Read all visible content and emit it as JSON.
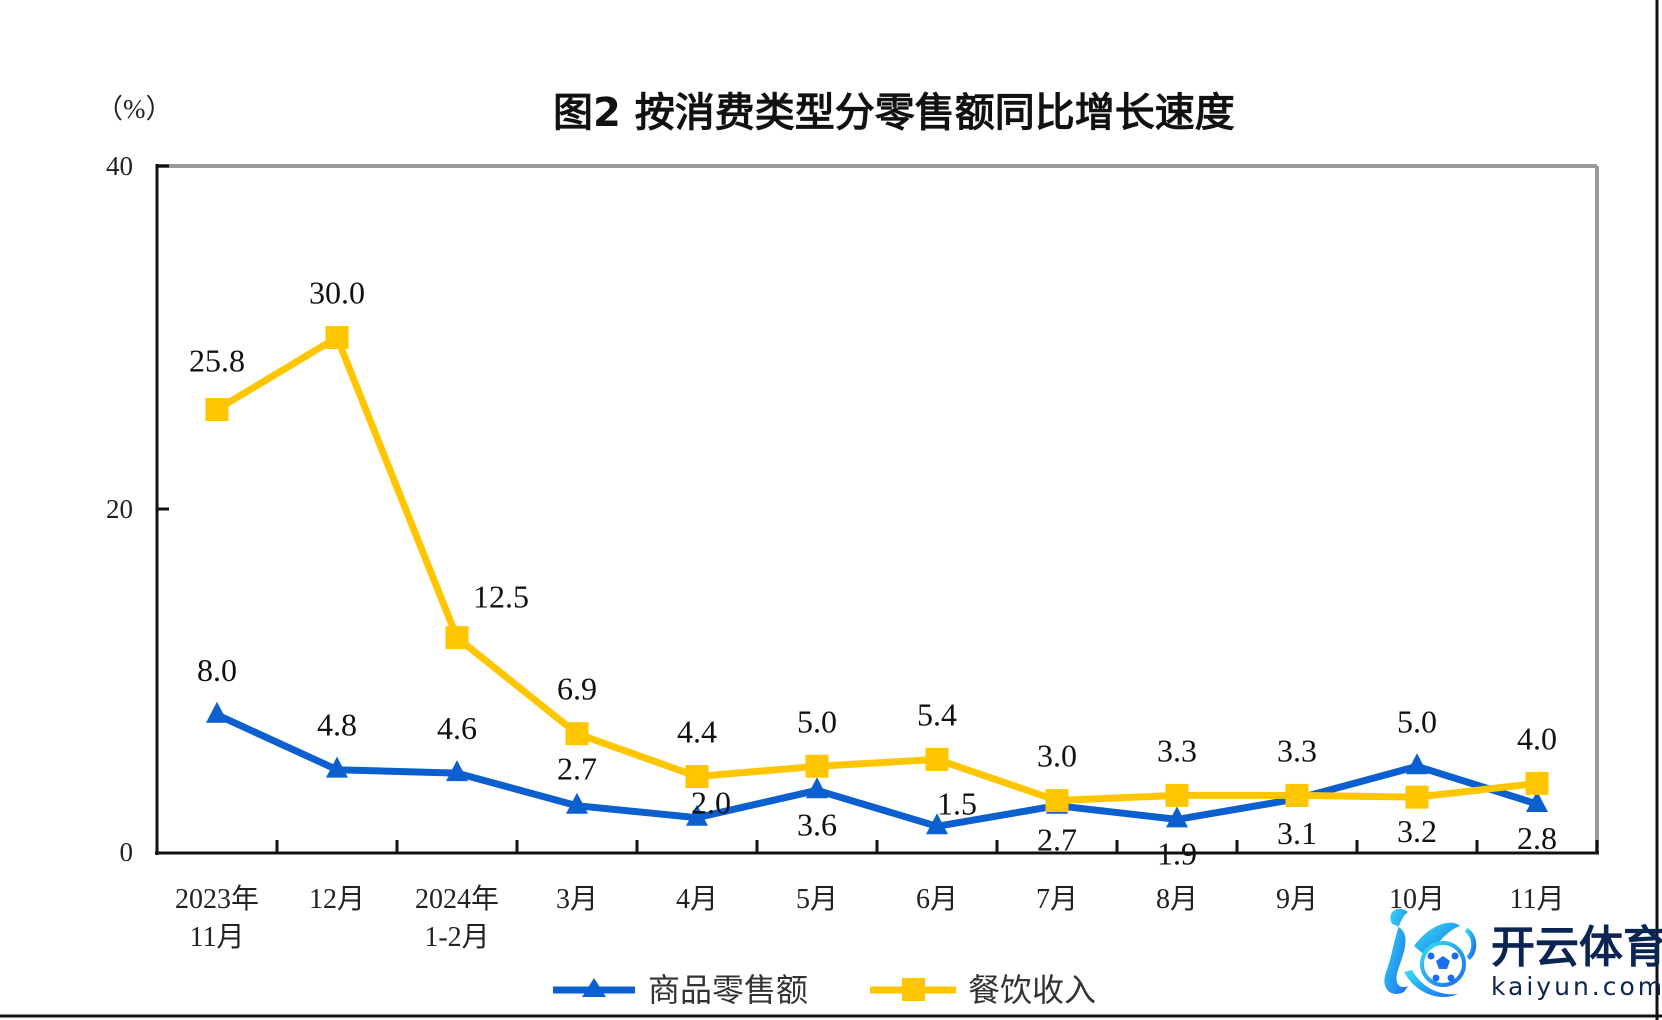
{
  "chart_data": {
    "type": "line",
    "title": "图2  按消费类型分零售额同比增长速度",
    "ylabel": "（%）",
    "xlabel": "",
    "ylim": [
      0,
      40
    ],
    "yticks": [
      0,
      20,
      40
    ],
    "grid": false,
    "legend_position": "bottom",
    "categories": [
      [
        "2023年",
        "11月"
      ],
      [
        "12月"
      ],
      [
        "2024年",
        "1-2月"
      ],
      [
        "3月"
      ],
      [
        "4月"
      ],
      [
        "5月"
      ],
      [
        "6月"
      ],
      [
        "7月"
      ],
      [
        "8月"
      ],
      [
        "9月"
      ],
      [
        "10月"
      ],
      [
        "11月"
      ]
    ],
    "series": [
      {
        "name": "商品零售额",
        "color": "#0b5fcf",
        "marker": "triangle",
        "values": [
          8.0,
          4.8,
          4.6,
          2.7,
          2.0,
          3.6,
          1.5,
          2.7,
          1.9,
          3.1,
          5.0,
          2.8
        ],
        "labels": [
          "8.0",
          "4.8",
          "4.6",
          "2.7",
          "2.0",
          "3.6",
          "1.5",
          "2.7",
          "1.9",
          "3.1",
          "5.0",
          "2.8"
        ],
        "label_side": [
          "above",
          "above",
          "above",
          "above",
          "above",
          "below",
          "above",
          "below",
          "below",
          "below",
          "above",
          "below"
        ]
      },
      {
        "name": "餐饮收入",
        "color": "#ffc600",
        "marker": "square",
        "values": [
          25.8,
          30.0,
          12.5,
          6.9,
          4.4,
          5.0,
          5.4,
          3.0,
          3.3,
          3.3,
          3.2,
          4.0
        ],
        "labels": [
          "25.8",
          "30.0",
          "12.5",
          "6.9",
          "4.4",
          "5.0",
          "5.4",
          "3.0",
          "3.3",
          "3.3",
          "3.2",
          "4.0"
        ],
        "label_side": [
          "above",
          "above",
          "above",
          "above",
          "above",
          "above",
          "above",
          "above",
          "above",
          "above",
          "below",
          "above"
        ]
      }
    ]
  },
  "watermark": {
    "brand_cn": "开云体育",
    "brand_en": "kaiyun.com",
    "icon": "kaiyun-k-football-logo-icon"
  }
}
